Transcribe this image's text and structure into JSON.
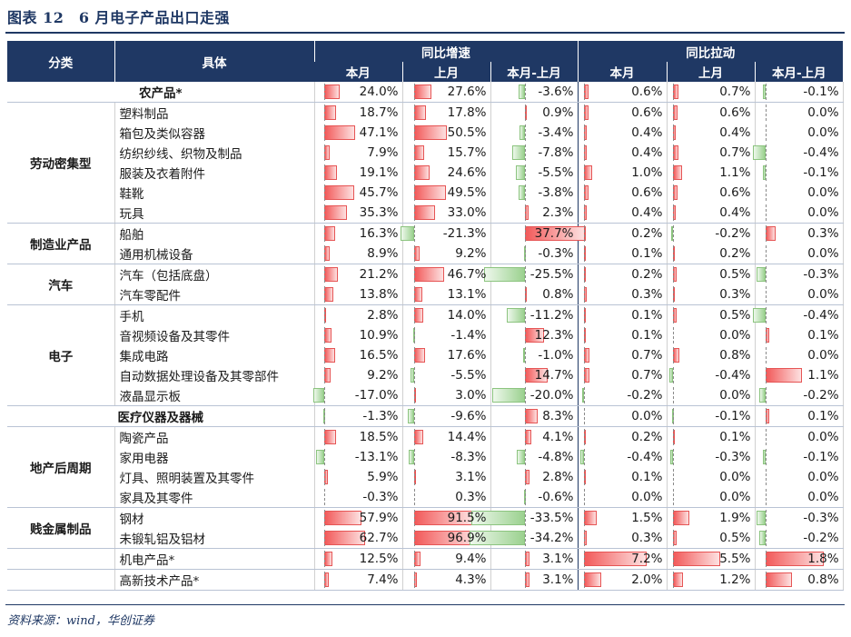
{
  "title": "图表 12　6 月电子产品出口走强",
  "source": "资料来源：wind，华创证券",
  "header": {
    "col_category": "分类",
    "col_item": "具体",
    "group_growth": "同比增速",
    "group_pull": "同比拉动",
    "sub": [
      "本月",
      "上月",
      "本月-上月",
      "本月",
      "上月",
      "本月-上月"
    ]
  },
  "scales": [
    100,
    100,
    40,
    7.5,
    7.5,
    2
  ],
  "rows": [
    {
      "cat": "",
      "item": "农产品*",
      "merged": true,
      "vals": [
        24.0,
        27.6,
        -3.6,
        0.6,
        0.7,
        -0.1
      ],
      "labels": [
        "24.0%",
        "27.6%",
        "-3.6%",
        "0.6%",
        "0.7%",
        "-0.1%"
      ]
    },
    {
      "cat": "劳动密集型",
      "item": "塑料制品",
      "vals": [
        18.7,
        17.8,
        0.9,
        0.6,
        0.6,
        0.0
      ],
      "labels": [
        "18.7%",
        "17.8%",
        "0.9%",
        "0.6%",
        "0.6%",
        "0.0%"
      ]
    },
    {
      "cat": "",
      "item": "箱包及类似容器",
      "vals": [
        47.1,
        50.5,
        -3.4,
        0.4,
        0.4,
        0.0
      ],
      "labels": [
        "47.1%",
        "50.5%",
        "-3.4%",
        "0.4%",
        "0.4%",
        "0.0%"
      ]
    },
    {
      "cat": "",
      "item": "纺织纱线、织物及制品",
      "vals": [
        7.9,
        15.7,
        -7.8,
        0.4,
        0.7,
        -0.4
      ],
      "labels": [
        "7.9%",
        "15.7%",
        "-7.8%",
        "0.4%",
        "0.7%",
        "-0.4%"
      ]
    },
    {
      "cat": "",
      "item": "服装及衣着附件",
      "vals": [
        19.1,
        24.6,
        -5.5,
        1.0,
        1.1,
        -0.1
      ],
      "labels": [
        "19.1%",
        "24.6%",
        "-5.5%",
        "1.0%",
        "1.1%",
        "-0.1%"
      ]
    },
    {
      "cat": "",
      "item": "鞋靴",
      "vals": [
        45.7,
        49.5,
        -3.8,
        0.6,
        0.6,
        0.0
      ],
      "labels": [
        "45.7%",
        "49.5%",
        "-3.8%",
        "0.6%",
        "0.6%",
        "0.0%"
      ]
    },
    {
      "cat": "",
      "item": "玩具",
      "vals": [
        35.3,
        33.0,
        2.3,
        0.4,
        0.4,
        0.0
      ],
      "labels": [
        "35.3%",
        "33.0%",
        "2.3%",
        "0.4%",
        "0.4%",
        "0.0%"
      ]
    },
    {
      "cat": "制造业产品",
      "item": "船舶",
      "vals": [
        16.3,
        -21.3,
        37.7,
        0.2,
        -0.2,
        0.3
      ],
      "labels": [
        "16.3%",
        "-21.3%",
        "37.7%",
        "0.2%",
        "-0.2%",
        "0.3%"
      ]
    },
    {
      "cat": "",
      "item": "通用机械设备",
      "vals": [
        8.9,
        9.2,
        -0.3,
        0.1,
        0.2,
        0.0
      ],
      "labels": [
        "8.9%",
        "9.2%",
        "-0.3%",
        "0.1%",
        "0.2%",
        "0.0%"
      ]
    },
    {
      "cat": "汽车",
      "item": "汽车（包括底盘）",
      "vals": [
        21.2,
        46.7,
        -25.5,
        0.2,
        0.5,
        -0.3
      ],
      "labels": [
        "21.2%",
        "46.7%",
        "-25.5%",
        "0.2%",
        "0.5%",
        "-0.3%"
      ]
    },
    {
      "cat": "",
      "item": "汽车零配件",
      "vals": [
        13.8,
        13.1,
        0.8,
        0.3,
        0.3,
        0.0
      ],
      "labels": [
        "13.8%",
        "13.1%",
        "0.8%",
        "0.3%",
        "0.3%",
        "0.0%"
      ]
    },
    {
      "cat": "电子",
      "item": "手机",
      "vals": [
        2.8,
        14.0,
        -11.2,
        0.1,
        0.5,
        -0.4
      ],
      "labels": [
        "2.8%",
        "14.0%",
        "-11.2%",
        "0.1%",
        "0.5%",
        "-0.4%"
      ]
    },
    {
      "cat": "",
      "item": "音视频设备及其零件",
      "vals": [
        10.9,
        -1.4,
        12.3,
        0.1,
        0.0,
        0.1
      ],
      "labels": [
        "10.9%",
        "-1.4%",
        "12.3%",
        "0.1%",
        "0.0%",
        "0.1%"
      ]
    },
    {
      "cat": "",
      "item": "集成电路",
      "vals": [
        16.5,
        17.6,
        -1.0,
        0.7,
        0.8,
        0.0
      ],
      "labels": [
        "16.5%",
        "17.6%",
        "-1.0%",
        "0.7%",
        "0.8%",
        "0.0%"
      ]
    },
    {
      "cat": "",
      "item": "自动数据处理设备及其零部件",
      "vals": [
        9.2,
        -5.5,
        14.7,
        0.7,
        -0.4,
        1.1
      ],
      "labels": [
        "9.2%",
        "-5.5%",
        "14.7%",
        "0.7%",
        "-0.4%",
        "1.1%"
      ]
    },
    {
      "cat": "",
      "item": "液晶显示板",
      "vals": [
        -17.0,
        3.0,
        -20.0,
        -0.2,
        0.0,
        -0.2
      ],
      "labels": [
        "-17.0%",
        "3.0%",
        "-20.0%",
        "-0.2%",
        "0.0%",
        "-0.2%"
      ]
    },
    {
      "cat": "",
      "item": "医疗仪器及器械",
      "merged": true,
      "vals": [
        -1.3,
        -9.6,
        8.3,
        0.0,
        -0.1,
        0.1
      ],
      "labels": [
        "-1.3%",
        "-9.6%",
        "8.3%",
        "0.0%",
        "-0.1%",
        "0.1%"
      ]
    },
    {
      "cat": "地产后周期",
      "item": "陶瓷产品",
      "vals": [
        18.5,
        14.4,
        4.1,
        0.2,
        0.1,
        0.0
      ],
      "labels": [
        "18.5%",
        "14.4%",
        "4.1%",
        "0.2%",
        "0.1%",
        "0.0%"
      ]
    },
    {
      "cat": "",
      "item": "家用电器",
      "vals": [
        -13.1,
        -8.3,
        -4.8,
        -0.4,
        -0.3,
        -0.1
      ],
      "labels": [
        "-13.1%",
        "-8.3%",
        "-4.8%",
        "-0.4%",
        "-0.3%",
        "-0.1%"
      ]
    },
    {
      "cat": "",
      "item": "灯具、照明装置及其零件",
      "vals": [
        5.9,
        3.1,
        2.8,
        0.1,
        0.0,
        0.0
      ],
      "labels": [
        "5.9%",
        "3.1%",
        "2.8%",
        "0.1%",
        "0.0%",
        "0.0%"
      ]
    },
    {
      "cat": "",
      "item": "家具及其零件",
      "vals": [
        -0.3,
        0.3,
        -0.6,
        0.0,
        0.0,
        0.0
      ],
      "labels": [
        "-0.3%",
        "0.3%",
        "-0.6%",
        "0.0%",
        "0.0%",
        "0.0%"
      ]
    },
    {
      "cat": "贱金属制品",
      "item": "钢材",
      "vals": [
        57.9,
        91.5,
        -33.5,
        1.5,
        1.9,
        -0.3
      ],
      "labels": [
        "57.9%",
        "91.5%",
        "-33.5%",
        "1.5%",
        "1.9%",
        "-0.3%"
      ]
    },
    {
      "cat": "",
      "item": "未锻轧铝及铝材",
      "vals": [
        62.7,
        96.9,
        -34.2,
        0.3,
        0.5,
        -0.2
      ],
      "labels": [
        "62.7%",
        "96.9%",
        "-34.2%",
        "0.3%",
        "0.5%",
        "-0.2%"
      ]
    },
    {
      "cat": "",
      "item": "机电产品*",
      "vals": [
        12.5,
        9.4,
        3.1,
        7.2,
        5.5,
        1.8
      ],
      "labels": [
        "12.5%",
        "9.4%",
        "3.1%",
        "7.2%",
        "5.5%",
        "1.8%"
      ]
    },
    {
      "cat": "",
      "item": "高新技术产品*",
      "vals": [
        7.4,
        4.3,
        3.1,
        2.0,
        1.2,
        0.8
      ],
      "labels": [
        "7.4%",
        "4.3%",
        "3.1%",
        "2.0%",
        "1.2%",
        "0.8%"
      ]
    }
  ]
}
